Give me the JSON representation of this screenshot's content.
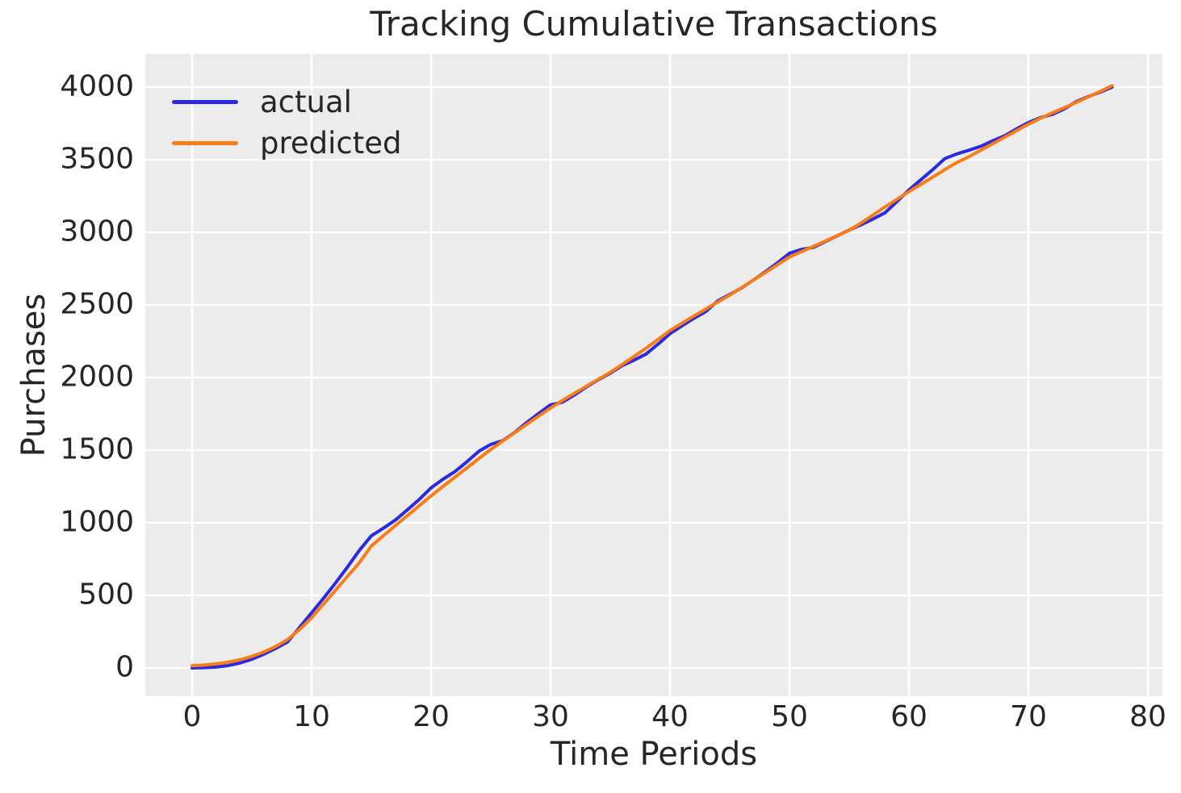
{
  "title": "Tracking Cumulative Transactions",
  "legend": {
    "items": [
      {
        "label": "actual",
        "color": "#2a2ae0"
      },
      {
        "label": "predicted",
        "color": "#f97c16"
      }
    ]
  },
  "colors": {
    "actual_line": "#2a2ae0",
    "predicted_line": "#f97c16",
    "plot_background": "#ececec",
    "gridline": "#ffffff",
    "text": "#262626",
    "figure_background": "#ffffff"
  },
  "chart_data": {
    "type": "line",
    "title": "Tracking Cumulative Transactions",
    "xlabel": "Time Periods",
    "ylabel": "Purchases",
    "x_ticks": [
      0,
      10,
      20,
      30,
      40,
      50,
      60,
      70,
      80
    ],
    "y_ticks": [
      0,
      500,
      1000,
      1500,
      2000,
      2500,
      3000,
      3500,
      4000
    ],
    "xlim": [
      -3.9,
      82.8
    ],
    "ylim": [
      -200,
      4240
    ],
    "grid": true,
    "legend_position": "upper left",
    "x": [
      0,
      1,
      2,
      3,
      4,
      5,
      6,
      7,
      8,
      9,
      10,
      11,
      12,
      13,
      14,
      15,
      16,
      17,
      18,
      19,
      20,
      21,
      22,
      23,
      24,
      25,
      26,
      27,
      28,
      29,
      30,
      31,
      32,
      33,
      34,
      35,
      36,
      37,
      38,
      39,
      40,
      41,
      42,
      43,
      44,
      45,
      46,
      47,
      48,
      49,
      50,
      51,
      52,
      53,
      54,
      55,
      56,
      57,
      58,
      59,
      60,
      61,
      62,
      63,
      64,
      65,
      66,
      67,
      68,
      69,
      70,
      71,
      72,
      73,
      74,
      75,
      76,
      77
    ],
    "series": [
      {
        "name": "actual",
        "color": "#2a2ae0",
        "values": [
          0,
          2,
          6,
          16,
          34,
          60,
          95,
          135,
          180,
          280,
          380,
          480,
          585,
          695,
          810,
          910,
          962,
          1018,
          1088,
          1160,
          1240,
          1300,
          1352,
          1420,
          1492,
          1540,
          1565,
          1622,
          1690,
          1752,
          1812,
          1830,
          1880,
          1935,
          1985,
          2030,
          2082,
          2120,
          2162,
          2230,
          2302,
          2356,
          2408,
          2455,
          2528,
          2572,
          2617,
          2672,
          2730,
          2790,
          2856,
          2882,
          2896,
          2936,
          2976,
          3016,
          3052,
          3092,
          3135,
          3212,
          3292,
          3362,
          3432,
          3508,
          3540,
          3565,
          3592,
          3630,
          3665,
          3712,
          3756,
          3790,
          3812,
          3850,
          3900,
          3935,
          3965,
          4000
        ]
      },
      {
        "name": "predicted",
        "color": "#f97c16",
        "values": [
          15,
          20,
          28,
          40,
          56,
          80,
          110,
          148,
          196,
          265,
          345,
          440,
          535,
          630,
          725,
          840,
          910,
          980,
          1048,
          1116,
          1185,
          1250,
          1314,
          1378,
          1442,
          1505,
          1563,
          1620,
          1678,
          1734,
          1790,
          1842,
          1892,
          1940,
          1988,
          2036,
          2090,
          2146,
          2202,
          2262,
          2324,
          2374,
          2424,
          2472,
          2520,
          2568,
          2620,
          2672,
          2724,
          2777,
          2830,
          2867,
          2903,
          2940,
          2977,
          3014,
          3065,
          3120,
          3175,
          3228,
          3280,
          3330,
          3380,
          3432,
          3480,
          3520,
          3565,
          3610,
          3655,
          3700,
          3745,
          3785,
          3822,
          3858,
          3895,
          3932,
          3970,
          4010
        ]
      }
    ]
  }
}
